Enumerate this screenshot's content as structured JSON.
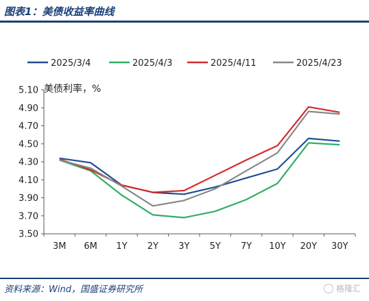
{
  "header": {
    "title": "图表1：美债收益率曲线"
  },
  "footer": {
    "source": "资料来源：Wind，国盛证券研究所",
    "watermark": "格隆汇"
  },
  "chart_data": {
    "type": "line",
    "title": "",
    "ylabel": "美债利率，%",
    "xlabel": "",
    "categories": [
      "3M",
      "6M",
      "1Y",
      "2Y",
      "3Y",
      "5Y",
      "7Y",
      "10Y",
      "20Y",
      "30Y"
    ],
    "ylim": [
      3.5,
      5.1
    ],
    "yticks": [
      "3.50",
      "3.70",
      "3.90",
      "4.10",
      "4.30",
      "4.50",
      "4.70",
      "4.90",
      "5.10"
    ],
    "grid": false,
    "legend": "top",
    "series": [
      {
        "name": "2025/3/4",
        "color": "#1f4e94",
        "values": [
          4.34,
          4.29,
          4.04,
          3.96,
          3.94,
          4.02,
          4.12,
          4.22,
          4.56,
          4.53
        ]
      },
      {
        "name": "2025/4/3",
        "color": "#2fae63",
        "values": [
          4.32,
          4.2,
          3.93,
          3.71,
          3.68,
          3.75,
          3.88,
          4.06,
          4.51,
          4.49
        ]
      },
      {
        "name": "2025/4/11",
        "color": "#d42a2a",
        "values": [
          4.33,
          4.21,
          4.04,
          3.96,
          3.98,
          4.15,
          4.32,
          4.48,
          4.91,
          4.85
        ]
      },
      {
        "name": "2025/4/23",
        "color": "#888888",
        "values": [
          4.32,
          4.23,
          4.03,
          3.81,
          3.87,
          4.0,
          4.2,
          4.4,
          4.86,
          4.83
        ]
      }
    ]
  }
}
